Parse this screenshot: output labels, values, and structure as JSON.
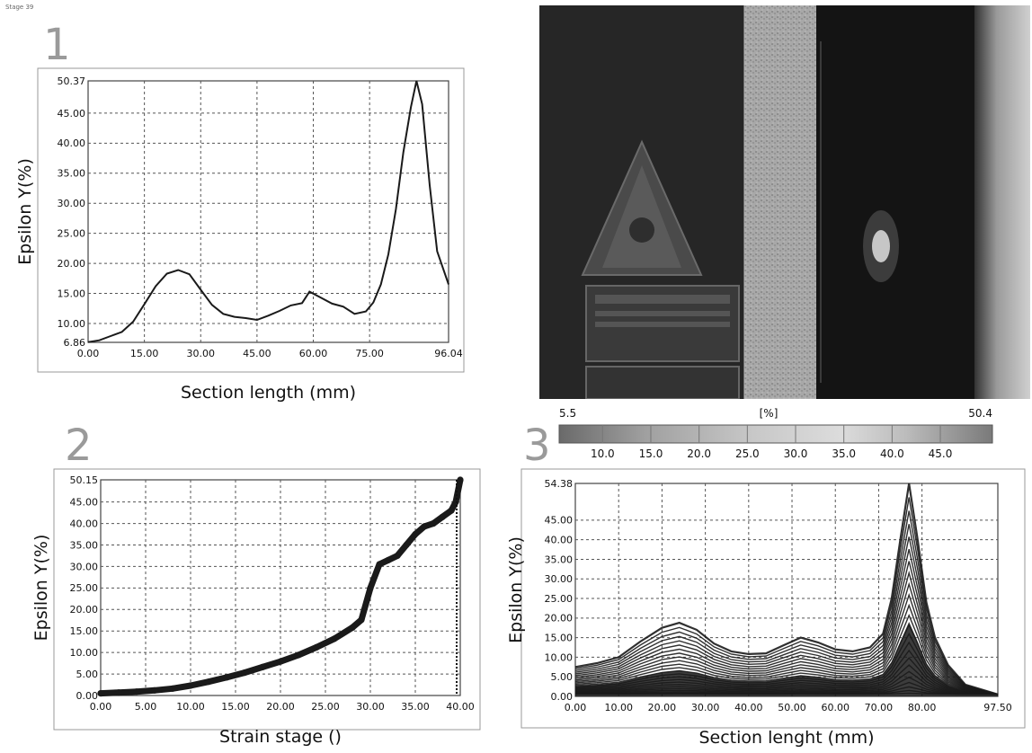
{
  "stage_label": "Stage 39",
  "panels": {
    "p1": "1",
    "p2": "2",
    "p3": "3"
  },
  "colors": {
    "line": "#1a1a1a",
    "grid": "#555555",
    "frame": "#444444",
    "panel_number": "#9a9a9a"
  },
  "chart_data": [
    {
      "type": "line",
      "ylabel": "Epsilon Y(%)",
      "xlabel": "Section length (mm)",
      "xlim": [
        0,
        96.04
      ],
      "ylim": [
        6.86,
        50.37
      ],
      "xticks": [
        "0.00",
        "15.00",
        "30.00",
        "45.00",
        "60.00",
        "75.00",
        "96.04"
      ],
      "xtick_values": [
        0,
        15,
        30,
        45,
        60,
        75,
        96.04
      ],
      "yticks": [
        "6.86",
        "10.00",
        "15.00",
        "20.00",
        "25.00",
        "30.00",
        "35.00",
        "40.00",
        "45.00",
        "50.37"
      ],
      "ytick_values": [
        6.86,
        10,
        15,
        20,
        25,
        30,
        35,
        40,
        45,
        50.37
      ],
      "grid": true,
      "series": [
        {
          "x": [
            0,
            3,
            6,
            9,
            12,
            15,
            18,
            21,
            24,
            27,
            30,
            33,
            36,
            39,
            42,
            45,
            48,
            51,
            54,
            57,
            59,
            62,
            65,
            68,
            71,
            74,
            76,
            78,
            80,
            82,
            84,
            86,
            87.5,
            89,
            91,
            93,
            96.04
          ],
          "y": [
            6.9,
            7.2,
            7.9,
            8.6,
            10.3,
            13.2,
            16.2,
            18.3,
            18.9,
            18.2,
            15.6,
            13.1,
            11.6,
            11.1,
            10.9,
            10.6,
            11.3,
            12.1,
            13.0,
            13.4,
            15.3,
            14.3,
            13.3,
            12.8,
            11.6,
            12.0,
            13.5,
            16.5,
            21.5,
            29.0,
            38.5,
            46.0,
            50.37,
            46.5,
            33.0,
            22.0,
            16.5
          ]
        }
      ]
    },
    {
      "type": "scatter",
      "ylabel": "Epsilon Y(%)",
      "xlabel": "Strain stage ()",
      "xlim": [
        0,
        40
      ],
      "ylim": [
        0,
        50.15
      ],
      "xticks": [
        "0.00",
        "5.00",
        "10.00",
        "15.00",
        "20.00",
        "25.00",
        "30.00",
        "35.00",
        "40.00"
      ],
      "xtick_values": [
        0,
        5,
        10,
        15,
        20,
        25,
        30,
        35,
        40
      ],
      "yticks": [
        "0.00",
        "5.00",
        "10.00",
        "15.00",
        "20.00",
        "25.00",
        "30.00",
        "35.00",
        "40.00",
        "45.00",
        "50.15"
      ],
      "ytick_values": [
        0,
        5,
        10,
        15,
        20,
        25,
        30,
        35,
        40,
        45,
        50.15
      ],
      "grid": true,
      "series": [
        {
          "x": [
            0,
            2,
            4,
            6,
            8,
            10,
            12,
            14,
            16,
            18,
            20,
            22,
            24,
            26,
            28,
            29,
            30,
            31,
            32,
            33,
            34,
            35,
            36,
            37,
            38,
            39,
            39.5,
            40
          ],
          "y": [
            0.5,
            0.7,
            0.9,
            1.2,
            1.6,
            2.3,
            3.2,
            4.2,
            5.3,
            6.6,
            7.9,
            9.4,
            11.2,
            13.2,
            15.8,
            17.6,
            25.0,
            30.5,
            31.5,
            32.5,
            35.0,
            37.5,
            39.3,
            40.0,
            41.5,
            43.0,
            45.0,
            50.15
          ]
        }
      ]
    },
    {
      "type": "line",
      "ylabel": "Epsilon Y(%)",
      "xlabel": "Section lenght (mm)",
      "xlim": [
        0,
        97.5
      ],
      "ylim": [
        0,
        54.38
      ],
      "xticks": [
        "0.00",
        "10.00",
        "20.00",
        "30.00",
        "40.00",
        "50.00",
        "60.00",
        "70.00",
        "80.00",
        "97.50"
      ],
      "xtick_values": [
        0,
        10,
        20,
        30,
        40,
        50,
        60,
        70,
        80,
        97.5
      ],
      "yticks": [
        "0.00",
        "5.00",
        "10.00",
        "15.00",
        "20.00",
        "25.00",
        "30.00",
        "35.00",
        "40.00",
        "45.00",
        "54.38"
      ],
      "ytick_values": [
        0,
        5,
        10,
        15,
        20,
        25,
        30,
        35,
        40,
        45,
        54.38
      ],
      "grid": true,
      "series": [
        {
          "x": [
            0,
            5,
            10,
            15,
            20,
            24,
            28,
            32,
            36,
            40,
            44,
            48,
            52,
            56,
            60,
            64,
            68,
            71,
            73,
            75,
            77,
            79,
            81,
            83,
            86,
            90,
            97.5
          ],
          "y": [
            7.5,
            8.5,
            10.0,
            14.0,
            17.5,
            18.8,
            17.0,
            13.5,
            11.5,
            10.8,
            11.0,
            13.0,
            15.0,
            13.8,
            12.0,
            11.5,
            12.5,
            16.0,
            25.0,
            40.0,
            54.38,
            40.0,
            24.0,
            15.0,
            8.0,
            3.0,
            0.5
          ]
        }
      ]
    }
  ],
  "colorbar": {
    "min_label": "5.5",
    "max_label": "50.4",
    "unit": "[%]",
    "ticks": [
      "10.0",
      "15.0",
      "20.0",
      "25.0",
      "30.0",
      "35.0",
      "40.0",
      "45.0"
    ],
    "min": 5.5,
    "max": 50.4
  }
}
